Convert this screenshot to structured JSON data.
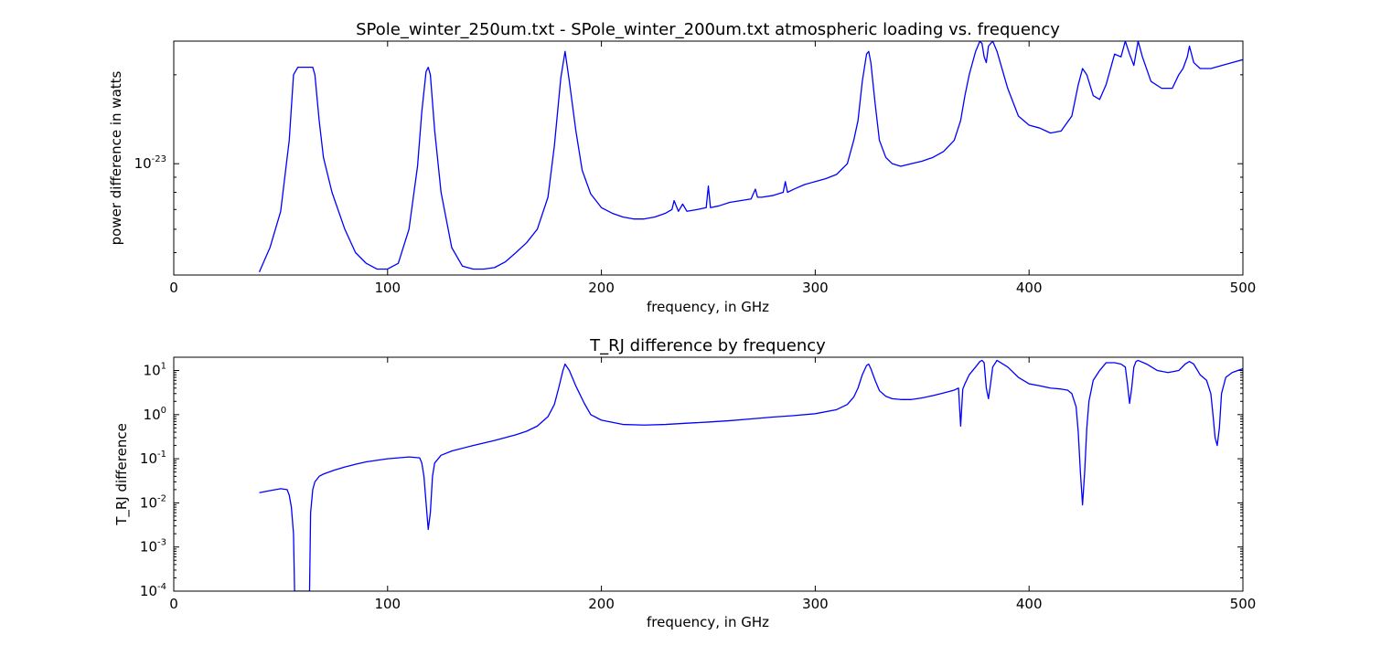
{
  "chart_data": [
    {
      "type": "line",
      "title": "SPole_winter_250um.txt - SPole_winter_200um.txt atmospheric loading vs. frequency",
      "xlabel": "frequency, in GHz",
      "ylabel": "power difference in watts",
      "xlim": [
        0,
        500
      ],
      "ylim": [
        4.2e-24,
        2.6e-23
      ],
      "yscale": "log",
      "x_ticks": [
        "0",
        "100",
        "200",
        "300",
        "400",
        "500"
      ],
      "y_ticks": [
        {
          "value": 1e-23,
          "base": "10",
          "exponent": "-23"
        }
      ],
      "grid": false,
      "color": "#0000ff",
      "series": [
        {
          "x": [
            40,
            45,
            50,
            54,
            56,
            58,
            65,
            66,
            68,
            70,
            74,
            80,
            85,
            90,
            95,
            100,
            105,
            110,
            114,
            116,
            118,
            119,
            120,
            122,
            125,
            130,
            135,
            140,
            145,
            150,
            155,
            160,
            165,
            170,
            175,
            178,
            181,
            183,
            185,
            188,
            191,
            195,
            200,
            205,
            210,
            215,
            220,
            225,
            230,
            233,
            234,
            236,
            238,
            240,
            245,
            249,
            250,
            251,
            255,
            260,
            265,
            270,
            272,
            273,
            275,
            280,
            285,
            286,
            287,
            290,
            295,
            300,
            305,
            310,
            315,
            318,
            320,
            322,
            324,
            325,
            326,
            328,
            330,
            333,
            336,
            340,
            345,
            350,
            355,
            360,
            365,
            368,
            370,
            372,
            375,
            377,
            378,
            379,
            380,
            381,
            383,
            385,
            390,
            395,
            400,
            405,
            410,
            415,
            420,
            423,
            425,
            427,
            430,
            433,
            436,
            440,
            443,
            445,
            447,
            449,
            451,
            453,
            457,
            462,
            467,
            470,
            472,
            474,
            475,
            477,
            480,
            485,
            490,
            495,
            500
          ],
          "y": [
            4.3e-24,
            5.2e-24,
            6.9e-24,
            1.2e-23,
            2e-23,
            2.12e-23,
            2.12e-23,
            2e-23,
            1.4e-23,
            1.05e-23,
            8e-24,
            6e-24,
            5e-24,
            4.6e-24,
            4.4e-24,
            4.4e-24,
            4.6e-24,
            6e-24,
            9.8e-24,
            1.5e-23,
            2.05e-23,
            2.12e-23,
            2e-23,
            1.3e-23,
            8e-24,
            5.2e-24,
            4.5e-24,
            4.4e-24,
            4.4e-24,
            4.45e-24,
            4.65e-24,
            5e-24,
            5.4e-24,
            6e-24,
            7.7e-24,
            1.15e-23,
            1.95e-23,
            2.4e-23,
            1.9e-23,
            1.3e-23,
            9.5e-24,
            7.9e-24,
            7.1e-24,
            6.8e-24,
            6.6e-24,
            6.5e-24,
            6.5e-24,
            6.6e-24,
            6.8e-24,
            7e-24,
            7.5e-24,
            6.9e-24,
            7.3e-24,
            6.9e-24,
            7e-24,
            7.1e-24,
            8.4e-24,
            7.1e-24,
            7.2e-24,
            7.4e-24,
            7.5e-24,
            7.6e-24,
            8.2e-24,
            7.7e-24,
            7.7e-24,
            7.8e-24,
            8e-24,
            8.7e-24,
            8e-24,
            8.2e-24,
            8.5e-24,
            8.7e-24,
            8.9e-24,
            9.2e-24,
            1e-23,
            1.2e-23,
            1.4e-23,
            1.9e-23,
            2.35e-23,
            2.4e-23,
            2.2e-23,
            1.6e-23,
            1.2e-23,
            1.05e-23,
            1e-23,
            9.8e-24,
            1e-23,
            1.02e-23,
            1.05e-23,
            1.1e-23,
            1.2e-23,
            1.4e-23,
            1.7e-23,
            2e-23,
            2.4e-23,
            2.6e-23,
            2.55e-23,
            2.3e-23,
            2.2e-23,
            2.5e-23,
            2.6e-23,
            2.4e-23,
            1.8e-23,
            1.45e-23,
            1.35e-23,
            1.32e-23,
            1.27e-23,
            1.29e-23,
            1.45e-23,
            1.85e-23,
            2.1e-23,
            2e-23,
            1.7e-23,
            1.65e-23,
            1.85e-23,
            2.35e-23,
            2.3e-23,
            2.6e-23,
            2.35e-23,
            2.15e-23,
            2.6e-23,
            2.3e-23,
            1.9e-23,
            1.8e-23,
            1.8e-23,
            2e-23,
            2.1e-23,
            2.3e-23,
            2.5e-23,
            2.2e-23,
            2.1e-23,
            2.1e-23,
            2.15e-23,
            2.2e-23,
            2.25e-23
          ]
        }
      ]
    },
    {
      "type": "line",
      "title": "T_RJ difference by frequency",
      "xlabel": "frequency, in GHz",
      "ylabel": "T_RJ difference",
      "xlim": [
        0,
        500
      ],
      "ylim": [
        0.0001,
        20
      ],
      "yscale": "log",
      "x_ticks": [
        "0",
        "100",
        "200",
        "300",
        "400",
        "500"
      ],
      "y_ticks": [
        {
          "value": 10,
          "base": "10",
          "exponent": "1"
        },
        {
          "value": 1,
          "base": "10",
          "exponent": "0"
        },
        {
          "value": 0.1,
          "base": "10",
          "exponent": "-1"
        },
        {
          "value": 0.01,
          "base": "10",
          "exponent": "-2"
        },
        {
          "value": 0.001,
          "base": "10",
          "exponent": "-3"
        },
        {
          "value": 0.0001,
          "base": "10",
          "exponent": "-4"
        }
      ],
      "grid": false,
      "color": "#0000ff",
      "series": [
        {
          "x": [
            40,
            45,
            50,
            53,
            54,
            55,
            56,
            56.5,
            57,
            63,
            63.5,
            64,
            65,
            66,
            68,
            70,
            75,
            80,
            85,
            90,
            100,
            110,
            115,
            116,
            117,
            118,
            119,
            120,
            121,
            122,
            125,
            130,
            140,
            150,
            160,
            165,
            170,
            175,
            178,
            180,
            182,
            183,
            185,
            188,
            192,
            195,
            200,
            210,
            220,
            230,
            240,
            250,
            260,
            270,
            280,
            290,
            300,
            310,
            315,
            318,
            320,
            322,
            324,
            325,
            326,
            328,
            330,
            333,
            336,
            340,
            345,
            350,
            355,
            360,
            365,
            367,
            368,
            369,
            370,
            372,
            375,
            377,
            378,
            379,
            380,
            381,
            382,
            383,
            385,
            390,
            395,
            400,
            405,
            410,
            415,
            418,
            420,
            422,
            423,
            424,
            425,
            426,
            427,
            428,
            430,
            433,
            436,
            440,
            443,
            445,
            446,
            447,
            448,
            449,
            450,
            451,
            455,
            460,
            465,
            470,
            473,
            475,
            477,
            480,
            483,
            485,
            486,
            487,
            488,
            489,
            490,
            492,
            495,
            500
          ],
          "y": [
            0.017,
            0.019,
            0.021,
            0.02,
            0.015,
            0.008,
            0.002,
            0.0001,
            0.0001,
            0.0001,
            0.0001,
            0.006,
            0.02,
            0.03,
            0.04,
            0.045,
            0.055,
            0.065,
            0.075,
            0.085,
            0.1,
            0.11,
            0.105,
            0.08,
            0.04,
            0.01,
            0.0025,
            0.006,
            0.04,
            0.08,
            0.12,
            0.15,
            0.2,
            0.26,
            0.35,
            0.42,
            0.55,
            0.9,
            1.7,
            4.0,
            10.0,
            14.0,
            10.0,
            4.5,
            1.8,
            1.0,
            0.75,
            0.6,
            0.58,
            0.6,
            0.64,
            0.68,
            0.73,
            0.8,
            0.88,
            0.95,
            1.05,
            1.3,
            1.7,
            2.5,
            4.0,
            8.0,
            13.0,
            14.0,
            11.0,
            6.0,
            3.5,
            2.6,
            2.3,
            2.2,
            2.2,
            2.4,
            2.7,
            3.1,
            3.6,
            4.0,
            0.55,
            3.8,
            5.0,
            8.0,
            12.0,
            16.0,
            17.0,
            15.0,
            4.0,
            2.3,
            5.0,
            12.0,
            17.0,
            12.0,
            7.0,
            5.0,
            4.5,
            4.0,
            3.8,
            3.6,
            3.0,
            1.5,
            0.4,
            0.05,
            0.009,
            0.05,
            0.5,
            2.0,
            6.0,
            10.0,
            15.0,
            15.0,
            14.0,
            12.0,
            5.0,
            1.8,
            4.0,
            12.0,
            16.0,
            17.0,
            14.0,
            10.0,
            9.0,
            10.0,
            14.0,
            16.0,
            14.0,
            8.0,
            6.0,
            3.0,
            1.0,
            0.3,
            0.2,
            0.5,
            3.0,
            7.0,
            9.0,
            11.0
          ]
        }
      ]
    }
  ]
}
